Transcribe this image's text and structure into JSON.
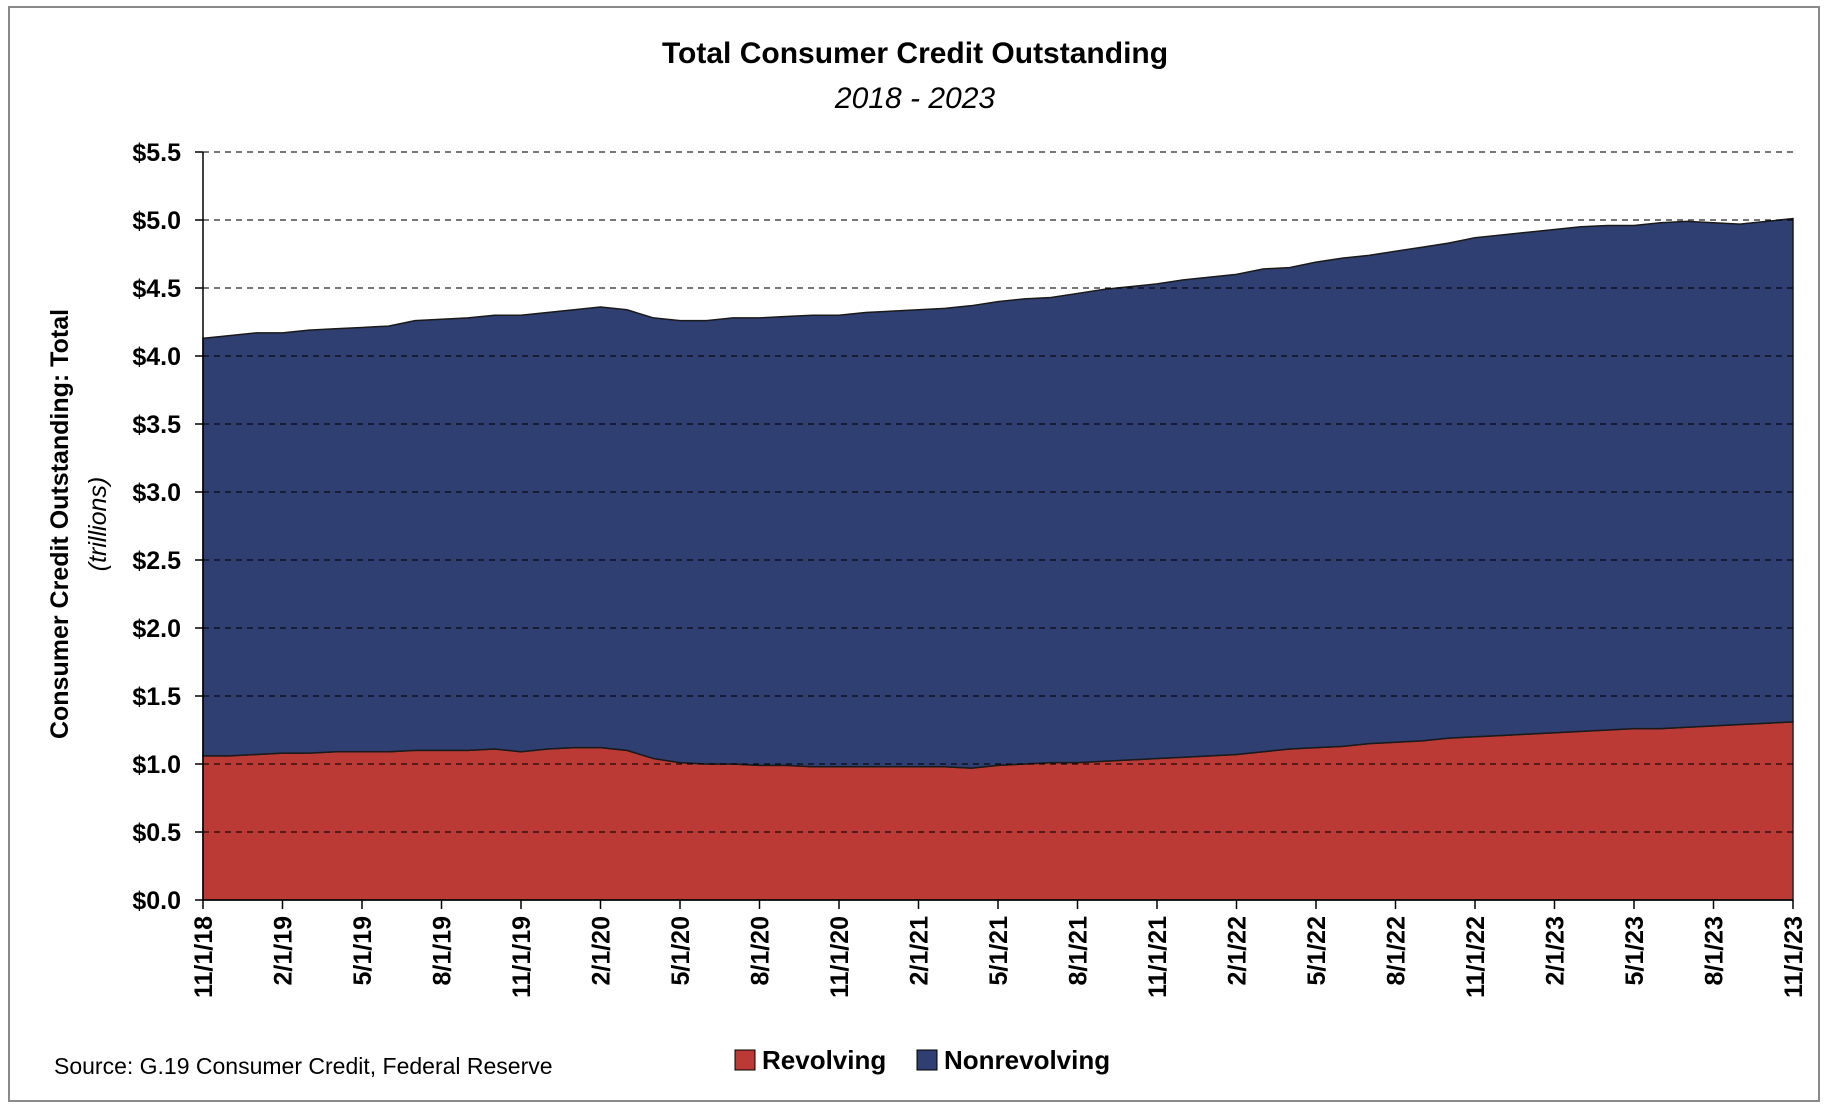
{
  "chart_data": {
    "type": "area",
    "stacked": true,
    "title": "Total Consumer Credit Outstanding",
    "subtitle": "2018 - 2023",
    "ylabel": "Consumer Credit Outstanding: Total",
    "ylabel_unit": "(trillions)",
    "source": "Source: G.19 Consumer Credit, Federal Reserve",
    "ylim": [
      0,
      5.5
    ],
    "ystep": 0.5,
    "grid": true,
    "legend_position": "bottom",
    "x": [
      "11/1/18",
      "12/1/18",
      "1/1/19",
      "2/1/19",
      "3/1/19",
      "4/1/19",
      "5/1/19",
      "6/1/19",
      "7/1/19",
      "8/1/19",
      "9/1/19",
      "10/1/19",
      "11/1/19",
      "12/1/19",
      "1/1/20",
      "2/1/20",
      "3/1/20",
      "4/1/20",
      "5/1/20",
      "6/1/20",
      "7/1/20",
      "8/1/20",
      "9/1/20",
      "10/1/20",
      "11/1/20",
      "12/1/20",
      "1/1/21",
      "2/1/21",
      "3/1/21",
      "4/1/21",
      "5/1/21",
      "6/1/21",
      "7/1/21",
      "8/1/21",
      "9/1/21",
      "10/1/21",
      "11/1/21",
      "12/1/21",
      "1/1/22",
      "2/1/22",
      "3/1/22",
      "4/1/22",
      "5/1/22",
      "6/1/22",
      "7/1/22",
      "8/1/22",
      "9/1/22",
      "10/1/22",
      "11/1/22",
      "12/1/22",
      "1/1/23",
      "2/1/23",
      "3/1/23",
      "4/1/23",
      "5/1/23",
      "6/1/23",
      "7/1/23",
      "8/1/23",
      "9/1/23",
      "10/1/23",
      "11/1/23"
    ],
    "x_tick_labels": [
      "11/1/18",
      "2/1/19",
      "5/1/19",
      "8/1/19",
      "11/1/19",
      "2/1/20",
      "5/1/20",
      "8/1/20",
      "11/1/20",
      "2/1/21",
      "5/1/21",
      "8/1/21",
      "11/1/21",
      "2/1/22",
      "5/1/22",
      "8/1/22",
      "11/1/22",
      "2/1/23",
      "5/1/23",
      "8/1/23",
      "11/1/23"
    ],
    "y_tick_labels": [
      "$0.0",
      "$0.5",
      "$1.0",
      "$1.5",
      "$2.0",
      "$2.5",
      "$3.0",
      "$3.5",
      "$4.0",
      "$4.5",
      "$5.0",
      "$5.5"
    ],
    "series": [
      {
        "name": "Revolving",
        "color": "#bb3a35",
        "values": [
          1.06,
          1.06,
          1.07,
          1.08,
          1.08,
          1.09,
          1.09,
          1.09,
          1.1,
          1.1,
          1.1,
          1.11,
          1.09,
          1.11,
          1.12,
          1.12,
          1.1,
          1.04,
          1.01,
          1.0,
          1.0,
          0.99,
          0.99,
          0.98,
          0.98,
          0.98,
          0.98,
          0.98,
          0.98,
          0.97,
          0.99,
          1.0,
          1.01,
          1.01,
          1.02,
          1.03,
          1.04,
          1.05,
          1.06,
          1.07,
          1.09,
          1.11,
          1.12,
          1.13,
          1.15,
          1.16,
          1.17,
          1.19,
          1.2,
          1.21,
          1.22,
          1.23,
          1.24,
          1.25,
          1.26,
          1.26,
          1.27,
          1.28,
          1.29,
          1.3,
          1.31
        ]
      },
      {
        "name": "Nonrevolving",
        "color": "#2f3f72",
        "values": [
          3.07,
          3.09,
          3.1,
          3.09,
          3.11,
          3.11,
          3.12,
          3.13,
          3.16,
          3.17,
          3.18,
          3.19,
          3.21,
          3.21,
          3.22,
          3.24,
          3.24,
          3.24,
          3.25,
          3.26,
          3.28,
          3.29,
          3.3,
          3.32,
          3.32,
          3.34,
          3.35,
          3.36,
          3.37,
          3.4,
          3.41,
          3.42,
          3.42,
          3.45,
          3.47,
          3.48,
          3.49,
          3.51,
          3.52,
          3.53,
          3.55,
          3.54,
          3.57,
          3.59,
          3.59,
          3.61,
          3.63,
          3.64,
          3.67,
          3.68,
          3.69,
          3.7,
          3.71,
          3.71,
          3.7,
          3.72,
          3.72,
          3.7,
          3.68,
          3.69,
          3.7
        ]
      }
    ]
  }
}
